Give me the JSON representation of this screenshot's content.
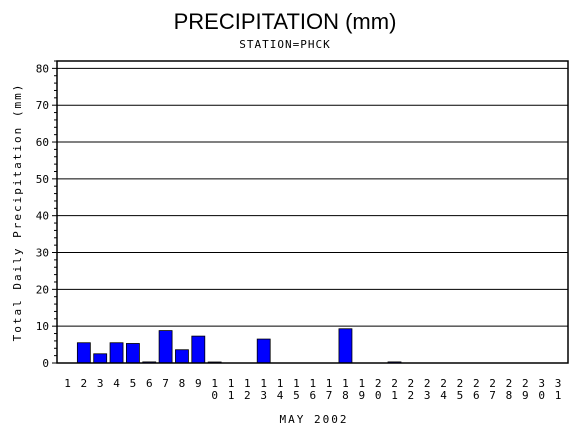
{
  "chart_data": {
    "type": "bar",
    "title": "PRECIPITATION (mm)",
    "subtitle": "STATION=PHCK",
    "xlabel": "MAY 2002",
    "ylabel": "Total Daily Precipitation (mm)",
    "ylim": [
      0,
      82
    ],
    "yticks": [
      0,
      10,
      20,
      30,
      40,
      50,
      60,
      70,
      80
    ],
    "grid": true,
    "legend": "none",
    "bar_color": "#0000ff",
    "categories": [
      "1",
      "2",
      "3",
      "4",
      "5",
      "6",
      "7",
      "8",
      "9",
      "10",
      "11",
      "12",
      "13",
      "14",
      "15",
      "16",
      "17",
      "18",
      "19",
      "20",
      "21",
      "22",
      "23",
      "24",
      "25",
      "26",
      "27",
      "28",
      "29",
      "30",
      "31"
    ],
    "values": [
      0,
      5.5,
      2.5,
      5.5,
      5.3,
      0.3,
      8.8,
      3.6,
      7.3,
      0.2,
      0,
      0,
      6.5,
      0,
      0,
      0,
      0,
      9.3,
      0,
      0,
      0.3,
      0,
      0,
      0,
      0,
      0,
      0,
      0,
      0,
      0,
      0
    ]
  }
}
